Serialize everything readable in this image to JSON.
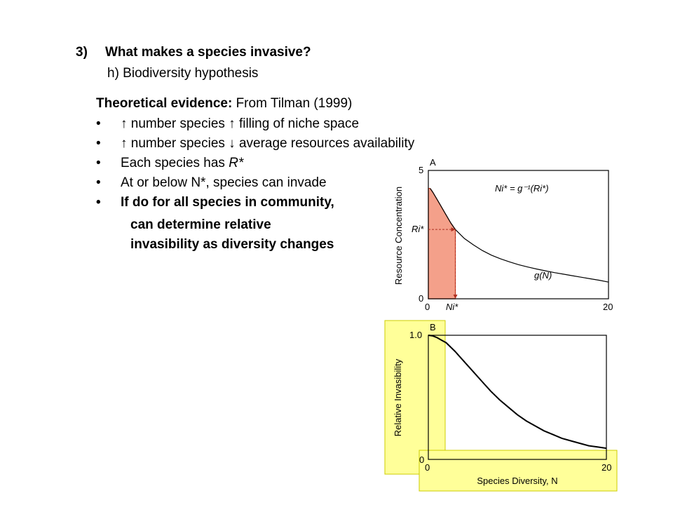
{
  "slide": {
    "heading_number": "3)",
    "heading_text": "What makes a species invasive?",
    "subheading": "h) Biodiversity hypothesis",
    "evidence_label": "Theoretical evidence:",
    "evidence_source": " From Tilman (1999)",
    "bullet_char": "•",
    "bullets": [
      "↑ number species ↑ filling of niche space",
      "↑ number species ↓ average resources availability",
      "At or below N*, species can invade",
      "If do for all species in community,"
    ],
    "bullet3_prefix": "Each species has ",
    "bullet3_var": "R*",
    "continuation": [
      "can determine relative",
      "invasibility as diversity changes"
    ]
  },
  "highlight_color": "#ffff99",
  "shade_color": "#f4a08a",
  "chart_data": [
    {
      "type": "line",
      "panel_label": "A",
      "ylabel": "Resource Concentration",
      "xlabel": "",
      "xlim": [
        0,
        20
      ],
      "ylim": [
        0,
        5
      ],
      "x_ticks": [
        "0",
        "20"
      ],
      "y_ticks": [
        "0",
        "5"
      ],
      "series": [
        {
          "name": "g(N)",
          "x": [
            0.2,
            0.5,
            1,
            1.5,
            2,
            2.5,
            3,
            4,
            5,
            6,
            7,
            8,
            9,
            10,
            11,
            12,
            13,
            14,
            15,
            16,
            17,
            18,
            19,
            20
          ],
          "y": [
            4.3,
            4.15,
            3.85,
            3.55,
            3.25,
            2.95,
            2.7,
            2.35,
            2.1,
            1.88,
            1.7,
            1.56,
            1.44,
            1.33,
            1.24,
            1.16,
            1.09,
            1.02,
            0.96,
            0.9,
            0.84,
            0.78,
            0.72,
            0.65
          ]
        }
      ],
      "equation": "Ni* = g⁻¹(Ri*)",
      "curve_label": "g(N)",
      "r_label": "Ri*",
      "n_label": "Ni*",
      "r_star": 2.7,
      "n_star": 3
    },
    {
      "type": "line",
      "panel_label": "B",
      "ylabel": "Relative Invasibility",
      "xlabel": "Species Diversity, N",
      "xlim": [
        0,
        20
      ],
      "ylim": [
        0,
        1.0
      ],
      "x_ticks": [
        "0",
        "20"
      ],
      "y_ticks": [
        "0",
        "1.0"
      ],
      "series": [
        {
          "x": [
            0,
            0.5,
            1,
            1.5,
            2,
            3,
            4,
            5,
            6,
            7,
            8,
            9,
            10,
            11,
            12,
            13,
            14,
            15,
            16,
            17,
            18,
            19,
            20
          ],
          "y": [
            1.0,
            0.995,
            0.98,
            0.96,
            0.94,
            0.87,
            0.79,
            0.71,
            0.63,
            0.55,
            0.48,
            0.42,
            0.36,
            0.31,
            0.27,
            0.23,
            0.2,
            0.17,
            0.15,
            0.13,
            0.11,
            0.1,
            0.09
          ]
        }
      ]
    }
  ]
}
